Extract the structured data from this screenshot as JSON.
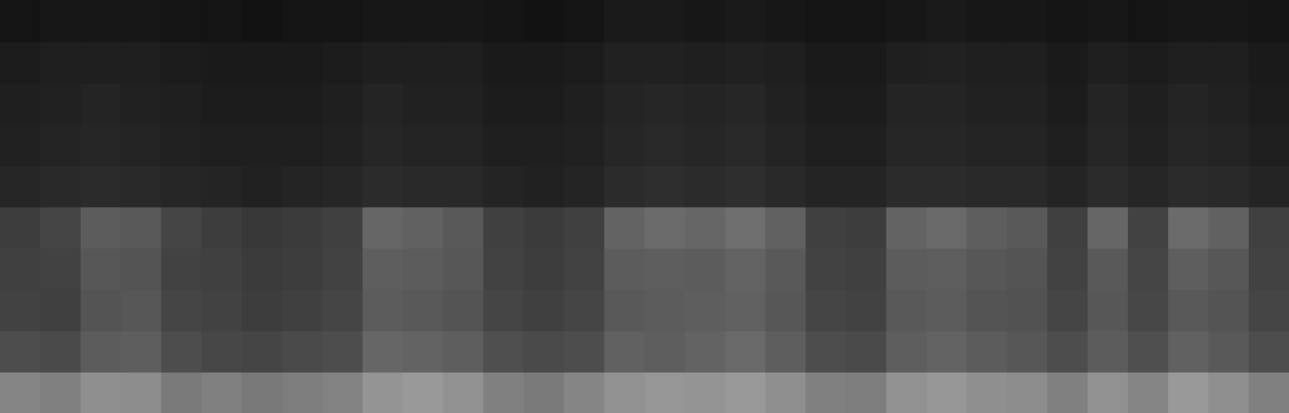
{
  "chart_data": {
    "type": "heatmap",
    "tick_labels": false,
    "xlim": [
      0,
      32
    ],
    "ylim": [
      0,
      10
    ],
    "zlim": [
      0,
      1
    ],
    "color": "#ffffff",
    "cells": [
      [
        0.52,
        0.5,
        0.56,
        0.55,
        0.48,
        0.5,
        0.47,
        0.49,
        0.51,
        0.58,
        0.6,
        0.57,
        0.5,
        0.48,
        0.52,
        0.57,
        0.59,
        0.58,
        0.6,
        0.56,
        0.5,
        0.49,
        0.57,
        0.59,
        0.56,
        0.55,
        0.5,
        0.57,
        0.52,
        0.6,
        0.56,
        0.5
      ],
      [
        0.3,
        0.29,
        0.36,
        0.37,
        0.3,
        0.28,
        0.27,
        0.29,
        0.3,
        0.4,
        0.39,
        0.37,
        0.31,
        0.29,
        0.3,
        0.38,
        0.37,
        0.39,
        0.41,
        0.37,
        0.3,
        0.29,
        0.37,
        0.39,
        0.36,
        0.34,
        0.3,
        0.36,
        0.31,
        0.38,
        0.35,
        0.3
      ],
      [
        0.26,
        0.25,
        0.33,
        0.34,
        0.27,
        0.26,
        0.24,
        0.25,
        0.27,
        0.36,
        0.35,
        0.33,
        0.27,
        0.25,
        0.27,
        0.35,
        0.36,
        0.37,
        0.38,
        0.34,
        0.27,
        0.26,
        0.35,
        0.36,
        0.33,
        0.32,
        0.27,
        0.34,
        0.28,
        0.35,
        0.33,
        0.27
      ],
      [
        0.25,
        0.26,
        0.34,
        0.33,
        0.26,
        0.25,
        0.23,
        0.24,
        0.26,
        0.37,
        0.36,
        0.34,
        0.26,
        0.24,
        0.26,
        0.36,
        0.37,
        0.36,
        0.39,
        0.35,
        0.26,
        0.25,
        0.36,
        0.37,
        0.34,
        0.33,
        0.26,
        0.35,
        0.27,
        0.37,
        0.34,
        0.26
      ],
      [
        0.24,
        0.27,
        0.36,
        0.35,
        0.27,
        0.24,
        0.22,
        0.23,
        0.25,
        0.4,
        0.38,
        0.35,
        0.25,
        0.23,
        0.25,
        0.39,
        0.42,
        0.4,
        0.43,
        0.38,
        0.25,
        0.24,
        0.39,
        0.41,
        0.37,
        0.35,
        0.25,
        0.4,
        0.26,
        0.42,
        0.38,
        0.25
      ],
      [
        0.15,
        0.16,
        0.17,
        0.16,
        0.15,
        0.14,
        0.13,
        0.14,
        0.15,
        0.17,
        0.16,
        0.16,
        0.14,
        0.13,
        0.14,
        0.17,
        0.18,
        0.17,
        0.18,
        0.16,
        0.14,
        0.14,
        0.17,
        0.17,
        0.16,
        0.16,
        0.14,
        0.17,
        0.15,
        0.17,
        0.16,
        0.14
      ],
      [
        0.13,
        0.14,
        0.15,
        0.14,
        0.13,
        0.12,
        0.12,
        0.12,
        0.13,
        0.15,
        0.14,
        0.14,
        0.12,
        0.12,
        0.13,
        0.15,
        0.16,
        0.15,
        0.16,
        0.14,
        0.12,
        0.12,
        0.15,
        0.15,
        0.14,
        0.14,
        0.12,
        0.15,
        0.13,
        0.15,
        0.14,
        0.12
      ],
      [
        0.12,
        0.13,
        0.14,
        0.13,
        0.12,
        0.11,
        0.11,
        0.11,
        0.12,
        0.14,
        0.13,
        0.13,
        0.11,
        0.11,
        0.12,
        0.14,
        0.15,
        0.14,
        0.15,
        0.13,
        0.11,
        0.11,
        0.14,
        0.14,
        0.13,
        0.13,
        0.11,
        0.14,
        0.12,
        0.14,
        0.13,
        0.11
      ],
      [
        0.11,
        0.12,
        0.12,
        0.12,
        0.11,
        0.1,
        0.1,
        0.1,
        0.11,
        0.12,
        0.12,
        0.12,
        0.1,
        0.1,
        0.11,
        0.13,
        0.13,
        0.12,
        0.13,
        0.12,
        0.1,
        0.1,
        0.12,
        0.13,
        0.12,
        0.12,
        0.1,
        0.12,
        0.11,
        0.12,
        0.12,
        0.1
      ],
      [
        0.08,
        0.09,
        0.09,
        0.09,
        0.08,
        0.08,
        0.07,
        0.08,
        0.08,
        0.09,
        0.09,
        0.09,
        0.08,
        0.07,
        0.08,
        0.1,
        0.1,
        0.09,
        0.1,
        0.09,
        0.08,
        0.08,
        0.09,
        0.1,
        0.09,
        0.09,
        0.08,
        0.09,
        0.08,
        0.09,
        0.09,
        0.08
      ]
    ]
  }
}
